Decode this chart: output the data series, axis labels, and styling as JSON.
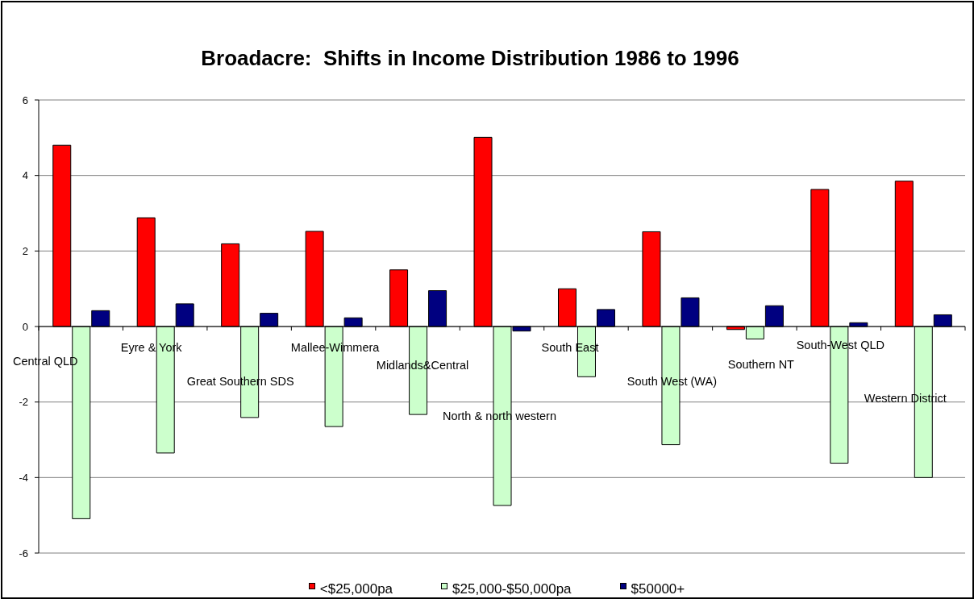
{
  "chart_data": {
    "type": "bar",
    "title": "Broadacre:  Shifts in Income Distribution 1986 to 1996",
    "categories": [
      "Central QLD",
      "Eyre & York",
      "Great Southern SDS",
      "Mallee-Wimmera",
      "Midlands&Central",
      "North & north western",
      "South East",
      "South West (WA)",
      "Southern NT",
      "South-West QLD",
      "Western District"
    ],
    "series": [
      {
        "name": "<$25,000pa",
        "color": "#ff0000",
        "values": [
          4.8,
          2.88,
          2.19,
          2.52,
          1.5,
          5.01,
          1.0,
          2.51,
          -0.08,
          3.63,
          3.85
        ]
      },
      {
        "name": "$25,000-$50,000pa",
        "color": "#ccffcc",
        "values": [
          -5.09,
          -3.35,
          -2.41,
          -2.65,
          -2.33,
          -4.74,
          -1.33,
          -3.13,
          -0.33,
          -3.62,
          -4.0
        ]
      },
      {
        "name": "$50000+",
        "color": "#000080",
        "values": [
          0.42,
          0.6,
          0.35,
          0.23,
          0.95,
          -0.12,
          0.45,
          0.76,
          0.55,
          0.1,
          0.31
        ]
      }
    ],
    "ylim": [
      -6,
      6
    ],
    "yticks": [
      -6,
      -4,
      -2,
      0,
      2,
      4,
      6
    ],
    "grid": "y",
    "legend": "bottom"
  }
}
